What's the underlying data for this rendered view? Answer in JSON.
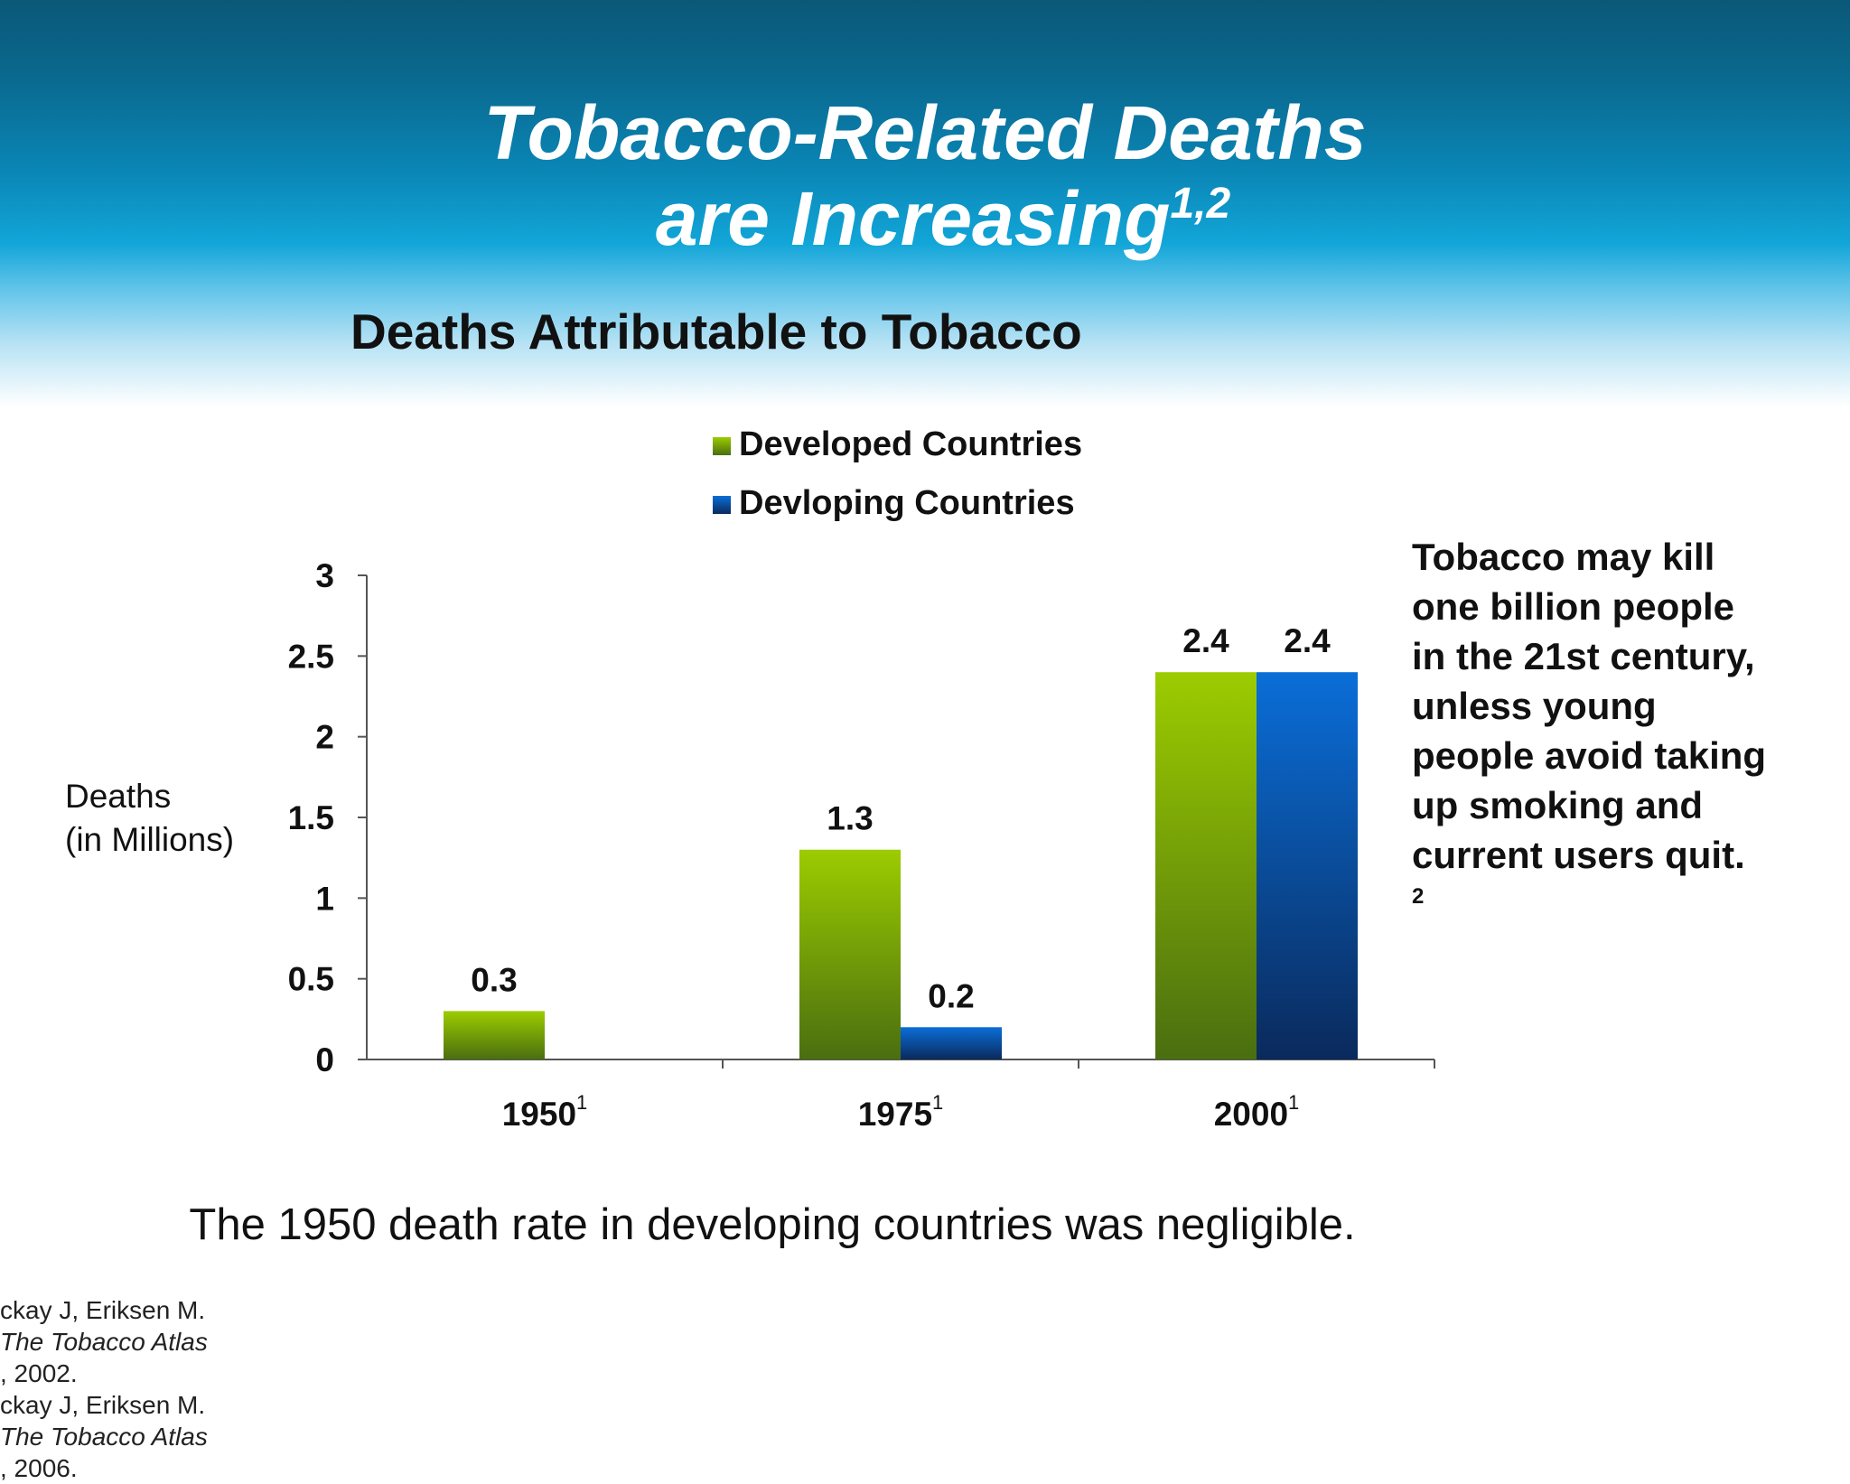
{
  "slide": {
    "title_line1": "Tobacco-Related Deaths",
    "title_line2": "are Increasing",
    "title_superscript": "1,2",
    "side_note_lines": [
      "Tobacco may kill",
      "one billion people",
      "in the 21st century,",
      "unless young",
      "people avoid taking",
      "up smoking and",
      "current users quit."
    ],
    "side_note_superscript": "2",
    "footnote": "The 1950 death rate in developing countries was negligible.",
    "references": [
      {
        "prefix": "ckay J, Eriksen M. ",
        "italic": "The Tobacco Atlas",
        "suffix": ", 2002."
      },
      {
        "prefix": "ckay J, Eriksen M. ",
        "italic": "The Tobacco Atlas",
        "suffix": ", 2006."
      }
    ],
    "colors": {
      "header_dark": "#0a5878",
      "header_mid": "#12a6d8",
      "developed_top": "#9ccc00",
      "developed_bottom": "#4a6e10",
      "developing_top": "#0a6ed8",
      "developing_bottom": "#0a2a5c"
    }
  },
  "chart_data": {
    "type": "bar",
    "title": "Deaths Attributable to Tobacco",
    "ylabel_lines": [
      "Deaths",
      "(in Millions)"
    ],
    "xlabel": "",
    "categories": [
      "1950",
      "1975",
      "2000"
    ],
    "category_superscripts": [
      "1",
      "1",
      "1"
    ],
    "series": [
      {
        "name": "Developed Countries",
        "values": [
          0.3,
          1.3,
          2.4
        ],
        "labels": [
          "0.3",
          "1.3",
          "2.4"
        ]
      },
      {
        "name": "Devloping Countries",
        "values": [
          null,
          0.2,
          2.4
        ],
        "labels": [
          "",
          "0.2",
          "2.4"
        ]
      }
    ],
    "ylim": [
      0,
      3
    ],
    "yticks": [
      0,
      0.5,
      1,
      1.5,
      2,
      2.5,
      3
    ],
    "ytick_labels": [
      "0",
      "0.5",
      "1",
      "1.5",
      "2",
      "2.5",
      "3"
    ],
    "grid": false,
    "legend": "top-center"
  }
}
